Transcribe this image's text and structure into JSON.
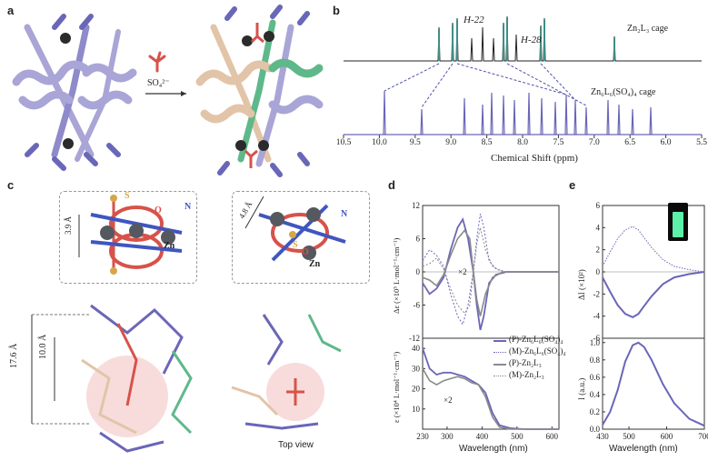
{
  "panels": {
    "a": "a",
    "b": "b",
    "c": "c",
    "d": "d",
    "e": "e"
  },
  "panel_a": {
    "reagent": "SO₄²⁻"
  },
  "panel_b": {
    "peak_labels": [
      "H-22",
      "H-28"
    ],
    "trace_top": "Zn₂L₃ cage",
    "trace_bottom": "Zn₆L₆(SO₄)₄ cage",
    "xlabel": "Chemical Shift (ppm)",
    "xticks": [
      "10.5",
      "10.0",
      "9.5",
      "9.0",
      "8.5",
      "8.0",
      "7.5",
      "7.0",
      "6.5",
      "6.0",
      "5.5"
    ]
  },
  "panel_c": {
    "dist_small": "3.9 Å",
    "dist_tilted": "4.8 Å",
    "atoms": {
      "s": "S",
      "o": "O",
      "n": "N",
      "zn": "Zn"
    },
    "height_outer": "17.6 Å",
    "height_inner": "10.0 Å",
    "top_view": "Top view"
  },
  "panel_d": {
    "ylabel_top": "Δε (×10³ L·mol⁻¹·cm⁻¹)",
    "ylabel_bottom": "ε (×10⁴ L·mol⁻¹·cm⁻¹)",
    "xlabel": "Wavelength (nm)",
    "yticks_top": [
      "12",
      "6",
      "0",
      "-6",
      "-12"
    ],
    "yticks_bottom": [
      "40",
      "30",
      "20",
      "10"
    ],
    "xticks": [
      "230",
      "300",
      "400",
      "500",
      "600"
    ],
    "annot_x2_top": "×2",
    "annot_x2_bottom": "×2",
    "legend": [
      "(P)-Zn₆L₆(SO₄)₄",
      "(M)-Zn₆L₆(SO₄)₄",
      "(P)-Zn₂L₃",
      "(M)-Zn₂L₃"
    ]
  },
  "panel_e": {
    "ylabel_top": "ΔI (×10²)",
    "ylabel_bottom": "I (a.u.)",
    "xlabel": "Wavelength (nm)",
    "yticks_top": [
      "6",
      "4",
      "2",
      "0",
      "-2",
      "-4",
      "-6"
    ],
    "yticks_bottom": [
      "1.0",
      "0.8",
      "0.6",
      "0.4",
      "0.2",
      "0.0"
    ],
    "xticks": [
      "430",
      "500",
      "600",
      "700"
    ]
  },
  "colors": {
    "purple": "#6a66b8",
    "lavender": "#a9a5d6",
    "tan": "#e2c4a8",
    "green": "#5fb88a",
    "teal": "#3e8e86",
    "red": "#d7524a",
    "gray": "#8a8a8a",
    "pink": "#f4c4c4"
  },
  "chart_data": [
    {
      "type": "line",
      "title": "",
      "xlabel": "Wavelength (nm)",
      "ylabel": "Δε (×10³ L·mol⁻¹·cm⁻¹)",
      "xlim": [
        230,
        620
      ],
      "ylim": [
        -12,
        12
      ],
      "series": [
        {
          "name": "(P)-Zn₆L₆(SO₄)₄",
          "x": [
            230,
            250,
            270,
            290,
            310,
            330,
            345,
            360,
            375,
            385,
            395,
            405,
            420,
            440,
            470,
            520,
            620
          ],
          "y": [
            -2,
            -4,
            -3,
            -1,
            4,
            8,
            9.5,
            6,
            0,
            -6,
            -10.5,
            -8,
            -2,
            -0.5,
            0,
            0,
            0
          ]
        },
        {
          "name": "(M)-Zn₆L₆(SO₄)₄",
          "x": [
            230,
            250,
            270,
            290,
            310,
            330,
            345,
            360,
            375,
            385,
            395,
            405,
            420,
            440,
            470,
            520,
            620
          ],
          "y": [
            2,
            4,
            3,
            1,
            -4,
            -8,
            -9.5,
            -6,
            0,
            6,
            10.5,
            8,
            2,
            0.5,
            0,
            0,
            0
          ]
        },
        {
          "name": "(P)-Zn₂L₃",
          "x": [
            230,
            250,
            270,
            290,
            310,
            330,
            350,
            365,
            375,
            385,
            395,
            410,
            430,
            460,
            620
          ],
          "y": [
            -1,
            -1.5,
            -2.5,
            -0.5,
            3,
            6,
            7.5,
            6,
            0,
            -5,
            -8,
            -4,
            -1,
            0,
            0
          ]
        },
        {
          "name": "(M)-Zn₂L₃",
          "x": [
            230,
            250,
            270,
            290,
            310,
            330,
            350,
            365,
            375,
            385,
            395,
            410,
            430,
            460,
            620
          ],
          "y": [
            1,
            1.5,
            2.5,
            0.5,
            -3,
            -6,
            -7.5,
            -6,
            0,
            5,
            8,
            4,
            1,
            0,
            0
          ]
        }
      ]
    },
    {
      "type": "line",
      "title": "",
      "xlabel": "Wavelength (nm)",
      "ylabel": "ε (×10⁴ L·mol⁻¹·cm⁻¹)",
      "xlim": [
        230,
        620
      ],
      "ylim": [
        0,
        45
      ],
      "series": [
        {
          "name": "(P)-Zn₆L₆(SO₄)₄",
          "x": [
            230,
            250,
            270,
            290,
            310,
            330,
            350,
            370,
            390,
            410,
            430,
            450,
            480,
            520,
            620
          ],
          "y": [
            40,
            30,
            27,
            28,
            28,
            27,
            26,
            24,
            22,
            18,
            8,
            2,
            0.5,
            0,
            0
          ]
        },
        {
          "name": "(P)-Zn₂L₃",
          "x": [
            230,
            250,
            270,
            290,
            310,
            330,
            350,
            370,
            390,
            410,
            430,
            450,
            480,
            520,
            620
          ],
          "y": [
            30,
            24,
            22,
            24,
            25,
            26,
            25,
            23,
            22,
            16,
            6,
            1,
            0,
            0,
            0
          ]
        }
      ]
    },
    {
      "type": "line",
      "title": "",
      "xlabel": "Wavelength (nm)",
      "ylabel": "ΔI (×10²)",
      "xlim": [
        430,
        700
      ],
      "ylim": [
        -6,
        6
      ],
      "series": [
        {
          "name": "",
          "x": [
            430,
            450,
            470,
            490,
            510,
            525,
            540,
            560,
            590,
            620,
            660,
            700
          ],
          "y": [
            0.5,
            1.8,
            3,
            3.8,
            4.1,
            3.8,
            3.1,
            2.2,
            1.1,
            0.5,
            0.2,
            0
          ]
        },
        {
          "name": "",
          "x": [
            430,
            450,
            470,
            490,
            510,
            525,
            540,
            560,
            590,
            620,
            660,
            700
          ],
          "y": [
            -0.5,
            -1.8,
            -3,
            -3.8,
            -4.1,
            -3.8,
            -3.1,
            -2.2,
            -1.1,
            -0.5,
            -0.2,
            0
          ]
        }
      ]
    },
    {
      "type": "line",
      "title": "",
      "xlabel": "Wavelength (nm)",
      "ylabel": "I (a.u.)",
      "xlim": [
        430,
        700
      ],
      "ylim": [
        0,
        1.05
      ],
      "series": [
        {
          "name": "",
          "x": [
            430,
            450,
            470,
            490,
            510,
            525,
            540,
            560,
            590,
            620,
            660,
            700
          ],
          "y": [
            0.05,
            0.2,
            0.45,
            0.78,
            0.97,
            1.0,
            0.95,
            0.8,
            0.52,
            0.3,
            0.12,
            0.04
          ]
        }
      ]
    }
  ]
}
